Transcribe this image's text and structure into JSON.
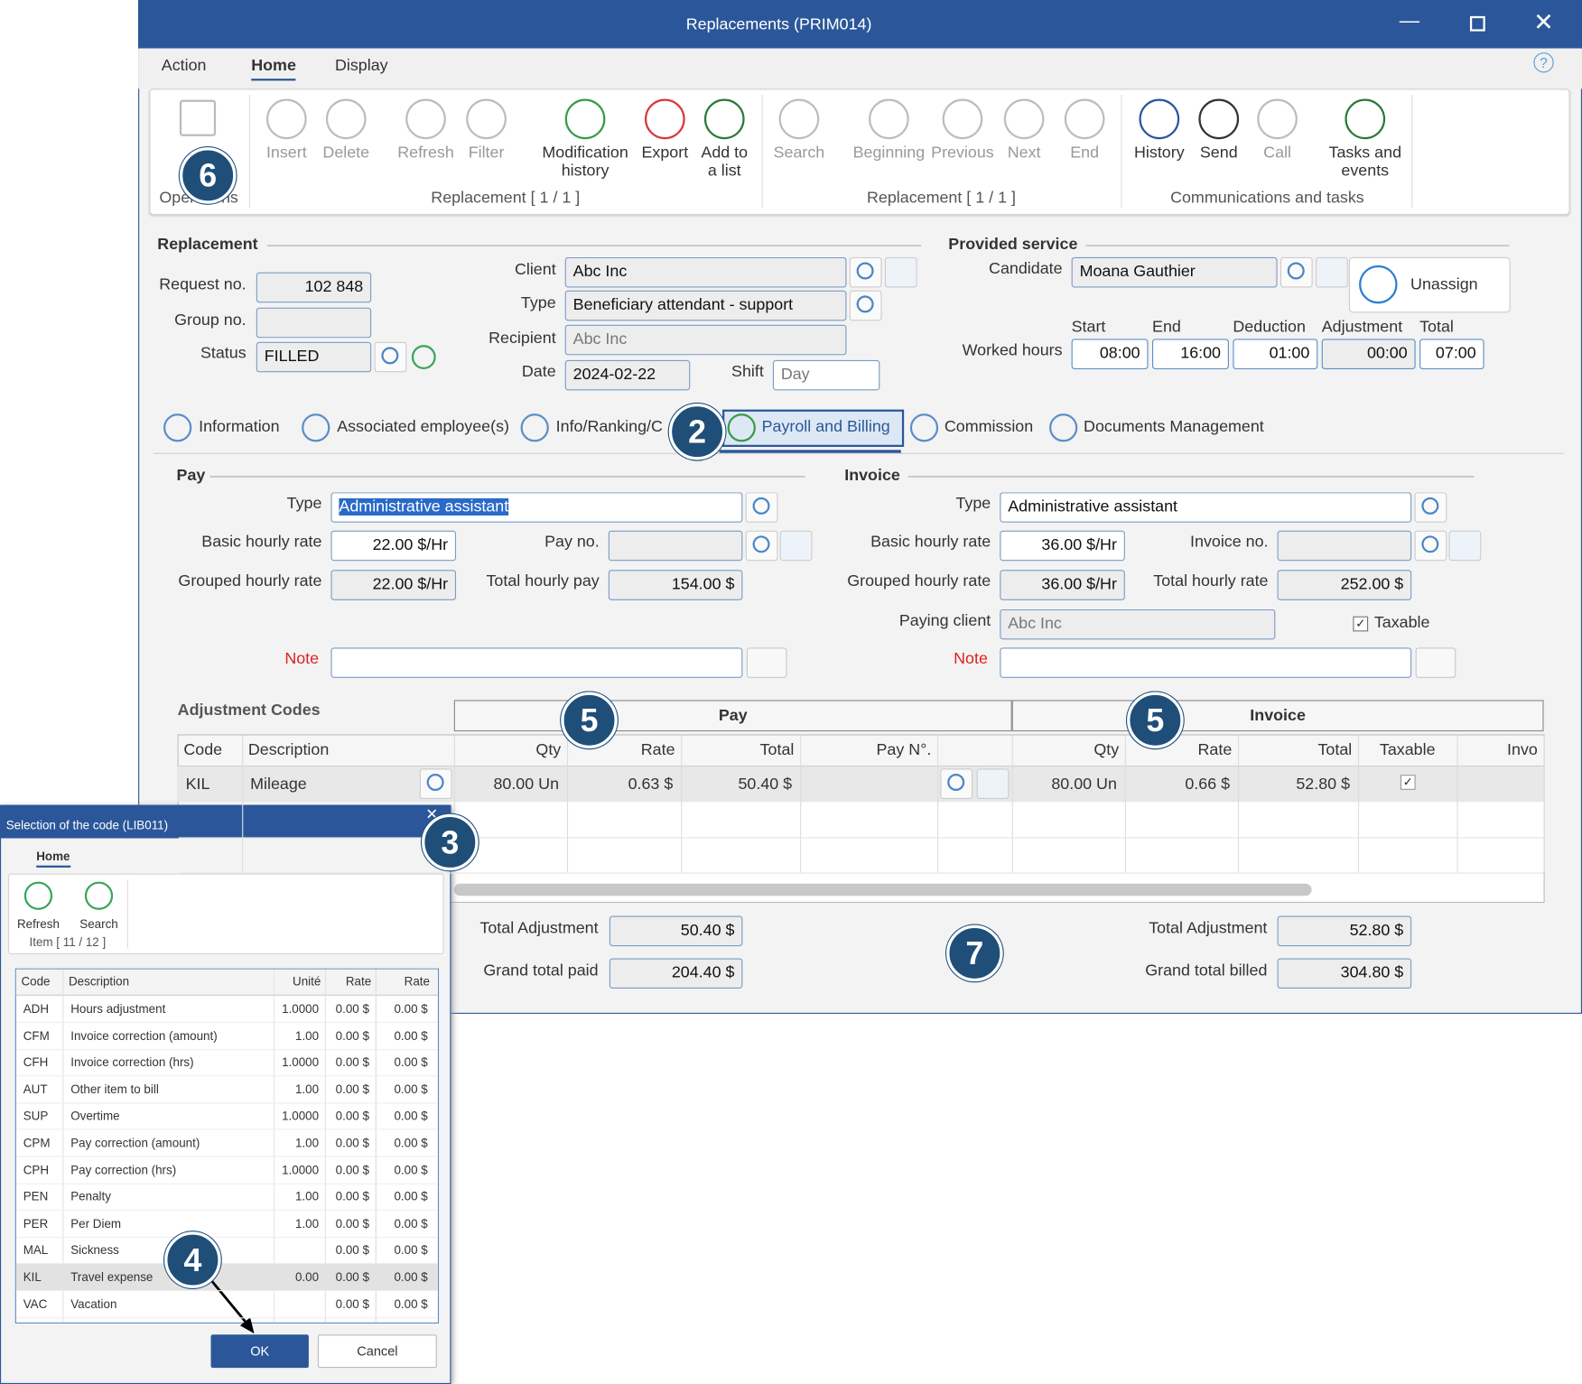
{
  "window": {
    "title": "Replacements (PRIM014)"
  },
  "menu": [
    "Action",
    "Home",
    "Display"
  ],
  "ribbon": {
    "buttons": [
      "Insert",
      "Delete",
      "Refresh",
      "Filter",
      "Modification history",
      "Export",
      "Add to a list",
      "Search",
      "Beginning",
      "Previous",
      "Next",
      "End",
      "History",
      "Send",
      "Call",
      "Tasks and events"
    ],
    "groups": [
      "Operations",
      "Replacement [ 1 / 1 ]",
      "Replacement [ 1 / 1 ]",
      "Communications and tasks"
    ]
  },
  "form": {
    "replacement": {
      "header": "Replacement",
      "request_label": "Request no.",
      "request_no": "102 848",
      "group_label": "Group no.",
      "status_label": "Status",
      "status": "FILLED",
      "client_label": "Client",
      "client": "Abc Inc",
      "type_label": "Type",
      "type": "Beneficiary attendant - support",
      "recipient_label": "Recipient",
      "recipient": "Abc Inc",
      "date_label": "Date",
      "date": "2024-02-22",
      "shift_label": "Shift",
      "shift": "Day"
    },
    "service": {
      "header": "Provided service",
      "candidate_label": "Candidate",
      "candidate": "Moana Gauthier",
      "unassign": "Unassign",
      "worked_label": "Worked hours",
      "columns": [
        "Start",
        "End",
        "Deduction",
        "Adjustment",
        "Total"
      ],
      "values": [
        "08:00",
        "16:00",
        "01:00",
        "00:00",
        "07:00"
      ]
    },
    "tabs": [
      "Information",
      "Associated employee(s)",
      "Info/Ranking/C",
      "Payroll and Billing",
      "Commission",
      "Documents Management"
    ],
    "pay": {
      "header": "Pay",
      "type_label": "Type",
      "type": "Administrative assistant",
      "basic_label": "Basic hourly rate",
      "basic": "22.00 $/Hr",
      "payno_label": "Pay no.",
      "grouped_label": "Grouped hourly rate",
      "grouped": "22.00 $/Hr",
      "total_label": "Total hourly pay",
      "total": "154.00 $",
      "note_label": "Note"
    },
    "invoice": {
      "header": "Invoice",
      "type_label": "Type",
      "type": "Administrative assistant",
      "basic_label": "Basic hourly rate",
      "basic": "36.00 $/Hr",
      "invno_label": "Invoice no.",
      "grouped_label": "Grouped hourly rate",
      "grouped": "36.00 $/Hr",
      "total_label": "Total hourly rate",
      "total": "252.00 $",
      "paying_label": "Paying client",
      "paying": "Abc Inc",
      "taxable": "Taxable",
      "note_label": "Note"
    },
    "adjustments": {
      "header": "Adjustment Codes",
      "groups": [
        "Pay",
        "Invoice"
      ],
      "columns": [
        "Code",
        "Description",
        "Qty",
        "Rate",
        "Total",
        "Pay N°.",
        null,
        "Qty",
        "Rate",
        "Total",
        "Taxable",
        "Invo"
      ],
      "rows": [
        [
          "KIL",
          "Mileage",
          "80.00 Un",
          "0.63 $",
          "50.40 $",
          null,
          null,
          "80.00 Un",
          "0.66 $",
          "52.80 $",
          null,
          null
        ]
      ]
    },
    "totals": {
      "pay_adj_label": "Total Adjustment",
      "pay_adj": "50.40 $",
      "paid_label": "Grand total paid",
      "paid": "204.40 $",
      "inv_adj_label": "Total Adjustment",
      "inv_adj": "52.80 $",
      "billed_label": "Grand total billed",
      "billed": "304.80 $"
    }
  },
  "dialog": {
    "title": "Selection of the code (LIB011)",
    "tab": "Home",
    "buttons": [
      "Refresh",
      "Search"
    ],
    "item": "Item [ 11 / 12 ]",
    "columns": [
      "Code",
      "Description",
      "Unité",
      "Rate",
      "Rate"
    ],
    "rows": [
      [
        "ADH",
        "Hours adjustment",
        "1.0000",
        "0.00 $",
        "0.00 $"
      ],
      [
        "CFM",
        "Invoice correction (amount)",
        "1.00",
        "0.00 $",
        "0.00 $"
      ],
      [
        "CFH",
        "Invoice correction (hrs)",
        "1.0000",
        "0.00 $",
        "0.00 $"
      ],
      [
        "AUT",
        "Other item to bill",
        "1.00",
        "0.00 $",
        "0.00 $"
      ],
      [
        "SUP",
        "Overtime",
        "1.0000",
        "0.00 $",
        "0.00 $"
      ],
      [
        "CPM",
        "Pay correction (amount)",
        "1.00",
        "0.00 $",
        "0.00 $"
      ],
      [
        "CPH",
        "Pay correction (hrs)",
        "1.0000",
        "0.00 $",
        "0.00 $"
      ],
      [
        "PEN",
        "Penalty",
        "1.00",
        "0.00 $",
        "0.00 $"
      ],
      [
        "PER",
        "Per Diem",
        "1.00",
        "0.00 $",
        "0.00 $"
      ],
      [
        "MAL",
        "Sickness",
        null,
        "0.00 $",
        "0.00 $"
      ],
      [
        "KIL",
        "Travel expense",
        "0.00",
        "0.00 $",
        "0.00 $"
      ],
      [
        "VAC",
        "Vacation",
        null,
        "0.00 $",
        "0.00 $"
      ]
    ],
    "ok": "OK",
    "cancel": "Cancel"
  },
  "callouts": [
    6,
    2,
    5,
    5,
    3,
    4,
    7
  ]
}
